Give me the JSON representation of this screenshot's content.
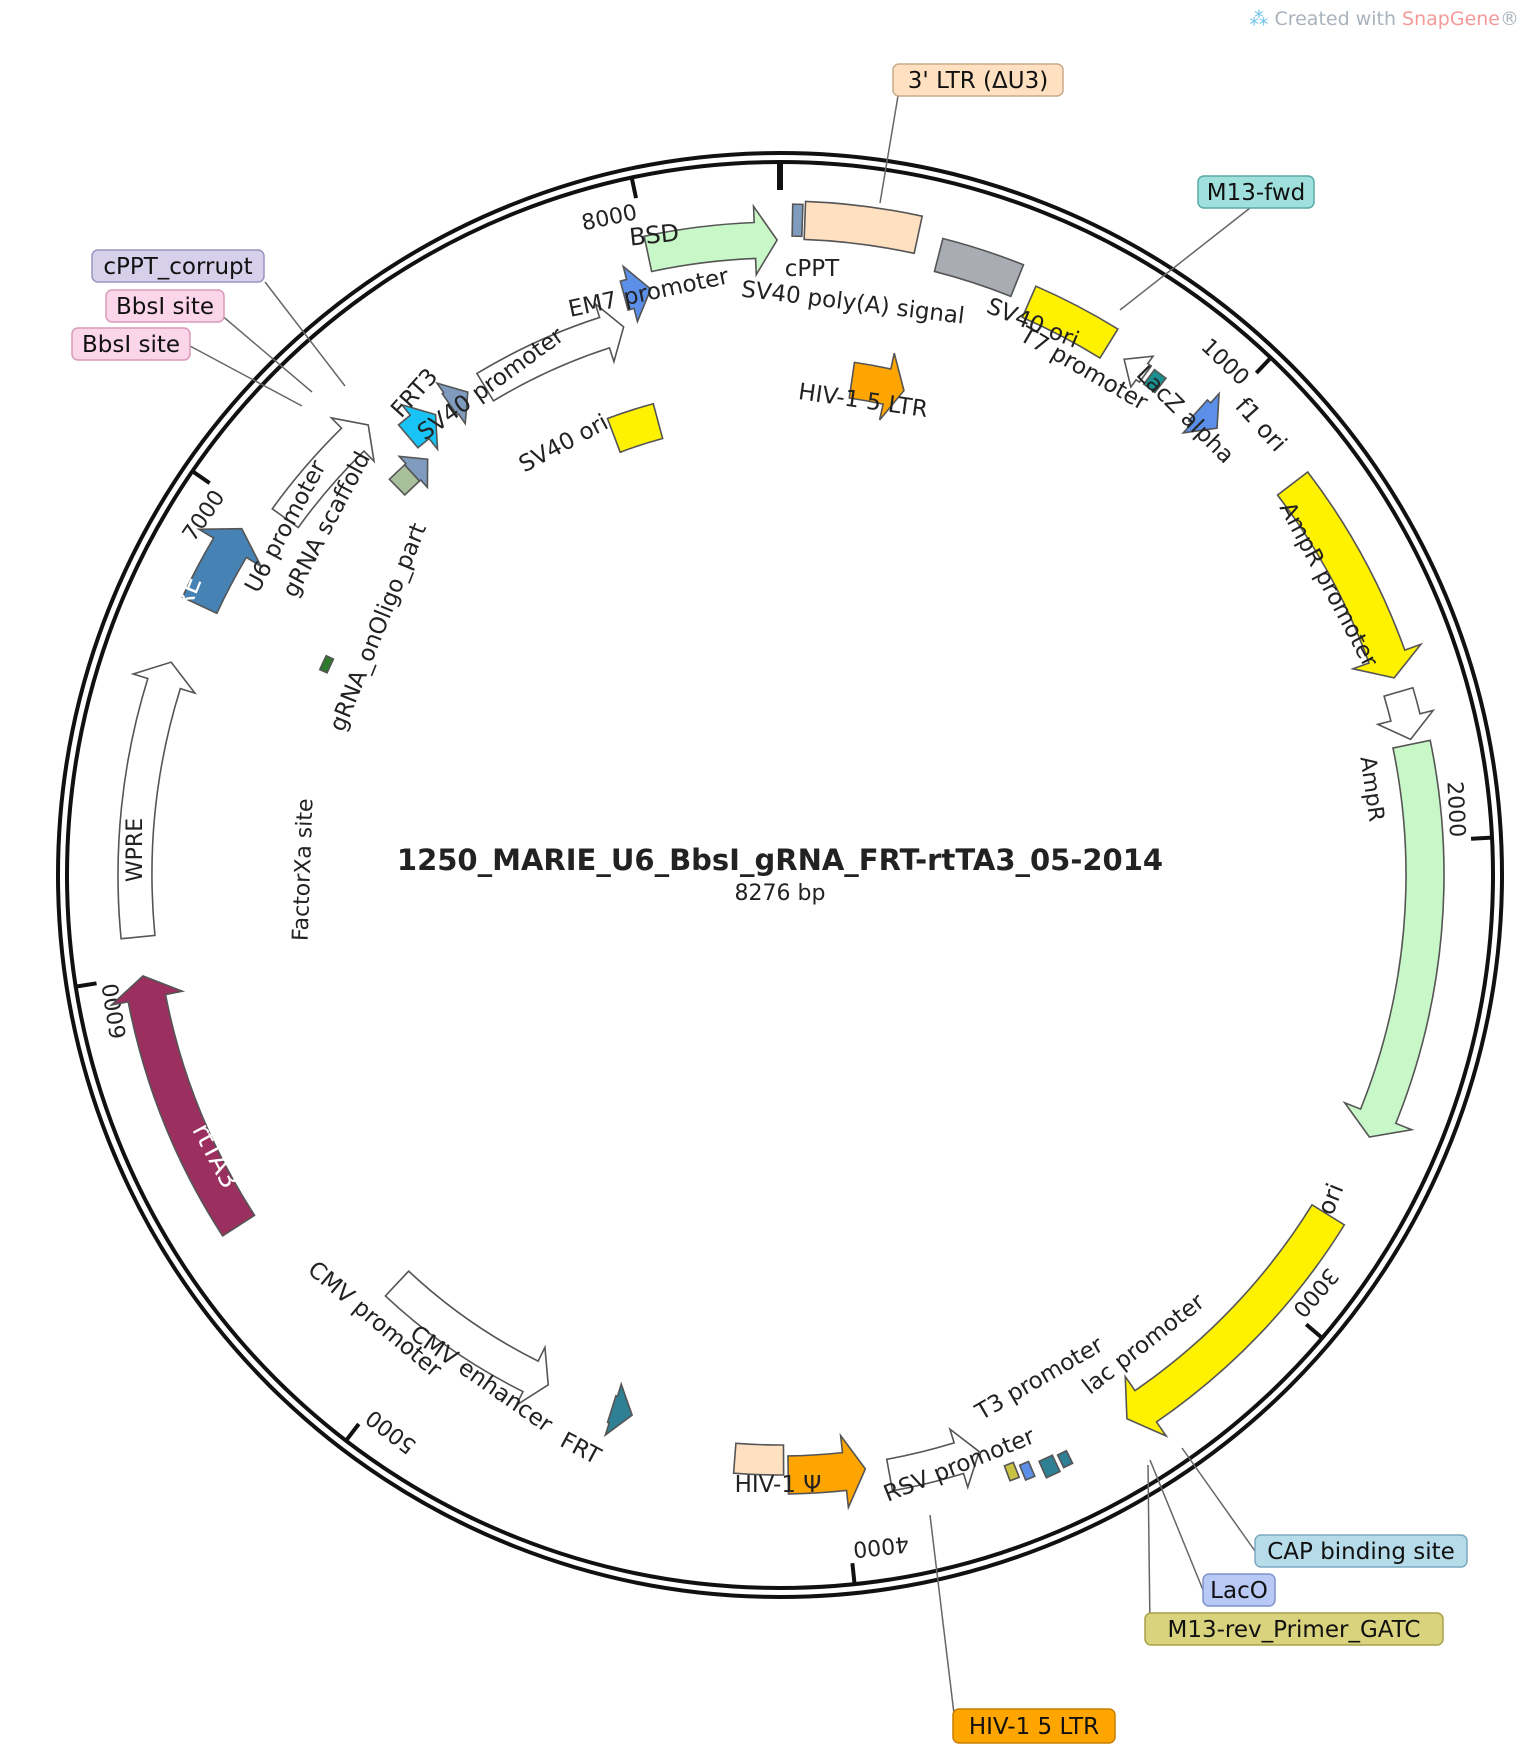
{
  "watermark": {
    "prefix": "Created with ",
    "brand": "SnapGene",
    "suffix": "®"
  },
  "plasmid": {
    "name": "1250_MARIE_U6_BbsI_gRNA_FRT-rtTA3_05-2014",
    "length_label": "8276 bp"
  },
  "ticks": [
    "1000",
    "2000",
    "3000",
    "4000",
    "5000",
    "6000",
    "7000",
    "8000"
  ],
  "colors": {
    "yellow": "#fff200",
    "peach": "#ffe0c0",
    "lightgreen": "#c8f8c8",
    "orange": "#ffa500",
    "grey": "#a9adb3",
    "blue": "#5b8fe8",
    "teal": "#1a8f8f",
    "steelblue": "#4682b4",
    "maroon": "#9b2f60",
    "darkteal": "#2f7f95",
    "slate": "#7f9cbf",
    "cyan": "#18c4f5",
    "sage": "#a7bf9a",
    "olive": "#c9c244",
    "darkgreen": "#2c7a2c",
    "white": "#ffffff"
  },
  "features": {
    "f1_ori": "f1 ori",
    "ampr": "AmpR",
    "ampr_promoter": "AmpR promoter",
    "ori": "ori",
    "lac_promoter": "lac promoter",
    "t3_promoter": "T3 promoter",
    "rsv_promoter": "RSV promoter",
    "hiv1_psi": "HIV-1 Ψ",
    "frt": "FRT",
    "cmv_enhancer": "CMV enhancer",
    "cmv_promoter": "CMV promoter",
    "rtta3": "rtTA3",
    "wpre": "WPRE",
    "rre": "RRE",
    "u6_promoter": "U6 promoter",
    "grna_scaffold": "gRNA scaffold",
    "grna_onoligo": "gRNA_onOligo_part",
    "factorxa": "FactorXa site",
    "frt3": "FRT3",
    "sv40_promoter": "SV40 promoter",
    "sv40_ori_inner": "SV40 ori",
    "em7_promoter": "EM7 promoter",
    "bsd": "BSD",
    "cppt": "cPPT",
    "sv40_polya": "SV40 poly(A) signal",
    "hiv1_5ltr_inner": "HIV-1 5 LTR",
    "sv40_ori": "SV40 ori",
    "t7_promoter": "T7 promoter",
    "lacz_alpha": "LacZ alpha"
  },
  "callouts": {
    "ltr3": "3' LTR (ΔU3)",
    "m13fwd": "M13-fwd",
    "cppt_corrupt": "cPPT_corrupt",
    "bbsi1": "BbsI site",
    "bbsi2": "BbsI site",
    "cap": "CAP binding site",
    "laco": "LacO",
    "m13rev": "M13-rev_Primer_GATC",
    "hiv5ltr": "HIV-1 5 LTR"
  }
}
